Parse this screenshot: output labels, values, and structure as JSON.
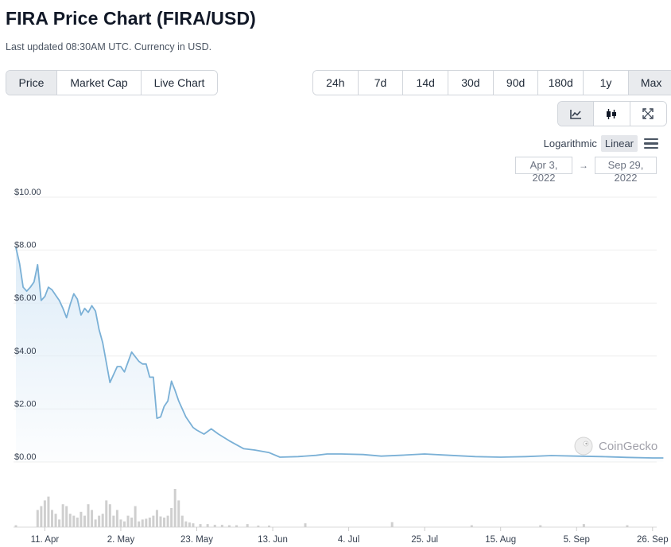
{
  "header": {
    "title": "FIRA Price Chart (FIRA/USD)",
    "subtitle": "Last updated 08:30AM UTC. Currency in USD."
  },
  "metric_tabs": [
    {
      "label": "Price",
      "active": true
    },
    {
      "label": "Market Cap",
      "active": false
    },
    {
      "label": "Live Chart",
      "active": false
    }
  ],
  "range_tabs": [
    {
      "label": "24h",
      "active": false
    },
    {
      "label": "7d",
      "active": false
    },
    {
      "label": "14d",
      "active": false
    },
    {
      "label": "30d",
      "active": false
    },
    {
      "label": "90d",
      "active": false
    },
    {
      "label": "180d",
      "active": false
    },
    {
      "label": "1y",
      "active": false
    },
    {
      "label": "Max",
      "active": true
    }
  ],
  "chart_type_buttons": [
    {
      "icon": "line-chart-icon",
      "active": true
    },
    {
      "icon": "candlestick-icon",
      "active": false
    },
    {
      "icon": "expand-icon",
      "active": false
    }
  ],
  "scale": {
    "logarithmic_label": "Logarithmic",
    "linear_label": "Linear",
    "selected": "Linear"
  },
  "date_range": {
    "from": "Apr 3, 2022",
    "to": "Sep 29, 2022",
    "arrow": "→"
  },
  "watermark": "CoinGecko",
  "colors": {
    "line": "#7ab0d6",
    "area_top": "#dcebf7",
    "volume": "#cfcfcf",
    "active_button": "#e9ebee"
  },
  "chart_data": {
    "type": "area",
    "ylim": [
      0,
      10
    ],
    "y_ticks": [
      "$0.00",
      "$2.00",
      "$4.00",
      "$6.00",
      "$8.00",
      "$10.00"
    ],
    "x_ticks": [
      "11. Apr",
      "2. May",
      "23. May",
      "13. Jun",
      "4. Jul",
      "25. Jul",
      "15. Aug",
      "5. Sep",
      "26. Sep"
    ],
    "series": [
      {
        "type": "line",
        "x": [
          "2022-04-03",
          "2022-04-04",
          "2022-04-05",
          "2022-04-06",
          "2022-04-07",
          "2022-04-08",
          "2022-04-09",
          "2022-04-10",
          "2022-04-11",
          "2022-04-12",
          "2022-04-13",
          "2022-04-14",
          "2022-04-15",
          "2022-04-16",
          "2022-04-17",
          "2022-04-18",
          "2022-04-19",
          "2022-04-20",
          "2022-04-21",
          "2022-04-22",
          "2022-04-23",
          "2022-04-24",
          "2022-04-25",
          "2022-04-26",
          "2022-04-27",
          "2022-04-29",
          "2022-05-01",
          "2022-05-02",
          "2022-05-03",
          "2022-05-05",
          "2022-05-07",
          "2022-05-08",
          "2022-05-09",
          "2022-05-10",
          "2022-05-11",
          "2022-05-12",
          "2022-05-13",
          "2022-05-14",
          "2022-05-15",
          "2022-05-16",
          "2022-05-17",
          "2022-05-18",
          "2022-05-20",
          "2022-05-22",
          "2022-05-23",
          "2022-05-25",
          "2022-05-27",
          "2022-05-29",
          "2022-06-01",
          "2022-06-05",
          "2022-06-08",
          "2022-06-12",
          "2022-06-15",
          "2022-06-20",
          "2022-06-25",
          "2022-06-28",
          "2022-07-02",
          "2022-07-08",
          "2022-07-13",
          "2022-07-18",
          "2022-07-25",
          "2022-08-01",
          "2022-08-08",
          "2022-08-15",
          "2022-08-22",
          "2022-08-29",
          "2022-09-05",
          "2022-09-12",
          "2022-09-19",
          "2022-09-26",
          "2022-09-29"
        ],
        "y": [
          8.1,
          7.5,
          6.6,
          6.45,
          6.6,
          6.8,
          7.45,
          6.1,
          6.25,
          6.6,
          6.5,
          6.3,
          6.1,
          5.8,
          5.45,
          5.95,
          6.35,
          6.15,
          5.55,
          5.8,
          5.65,
          5.9,
          5.7,
          5.0,
          4.5,
          3.0,
          3.6,
          3.6,
          3.4,
          4.15,
          3.8,
          3.7,
          3.7,
          3.2,
          3.2,
          1.65,
          1.7,
          2.1,
          2.3,
          3.05,
          2.7,
          2.3,
          1.7,
          1.3,
          1.2,
          1.05,
          1.25,
          1.05,
          0.8,
          0.5,
          0.45,
          0.35,
          0.18,
          0.2,
          0.25,
          0.3,
          0.3,
          0.28,
          0.22,
          0.25,
          0.3,
          0.25,
          0.2,
          0.18,
          0.2,
          0.24,
          0.22,
          0.2,
          0.17,
          0.15,
          0.15
        ]
      },
      {
        "type": "volume",
        "x": [
          "2022-04-03",
          "2022-04-09",
          "2022-04-10",
          "2022-04-11",
          "2022-04-12",
          "2022-04-13",
          "2022-04-14",
          "2022-04-15",
          "2022-04-16",
          "2022-04-17",
          "2022-04-18",
          "2022-04-19",
          "2022-04-20",
          "2022-04-21",
          "2022-04-22",
          "2022-04-23",
          "2022-04-24",
          "2022-04-25",
          "2022-04-26",
          "2022-04-27",
          "2022-04-28",
          "2022-04-29",
          "2022-04-30",
          "2022-05-01",
          "2022-05-02",
          "2022-05-03",
          "2022-05-04",
          "2022-05-05",
          "2022-05-06",
          "2022-05-07",
          "2022-05-08",
          "2022-05-09",
          "2022-05-10",
          "2022-05-11",
          "2022-05-12",
          "2022-05-13",
          "2022-05-14",
          "2022-05-15",
          "2022-05-16",
          "2022-05-17",
          "2022-05-18",
          "2022-05-19",
          "2022-05-20",
          "2022-05-21",
          "2022-05-22",
          "2022-05-24",
          "2022-05-26",
          "2022-05-28",
          "2022-05-30",
          "2022-06-01",
          "2022-06-03",
          "2022-06-06",
          "2022-06-09",
          "2022-06-12",
          "2022-06-22",
          "2022-07-16",
          "2022-08-07",
          "2022-08-26",
          "2022-09-07",
          "2022-09-19"
        ],
        "values": [
          0.05,
          0.45,
          0.55,
          0.7,
          0.8,
          0.45,
          0.35,
          0.2,
          0.6,
          0.55,
          0.35,
          0.3,
          0.25,
          0.4,
          0.3,
          0.6,
          0.45,
          0.2,
          0.3,
          0.35,
          0.7,
          0.6,
          0.3,
          0.45,
          0.2,
          0.15,
          0.3,
          0.25,
          0.55,
          0.15,
          0.2,
          0.22,
          0.25,
          0.3,
          0.45,
          0.28,
          0.25,
          0.3,
          0.5,
          1.0,
          0.7,
          0.3,
          0.15,
          0.12,
          0.1,
          0.08,
          0.08,
          0.06,
          0.06,
          0.05,
          0.05,
          0.08,
          0.04,
          0.04,
          0.1,
          0.13,
          0.05,
          0.05,
          0.08,
          0.05
        ]
      }
    ]
  }
}
